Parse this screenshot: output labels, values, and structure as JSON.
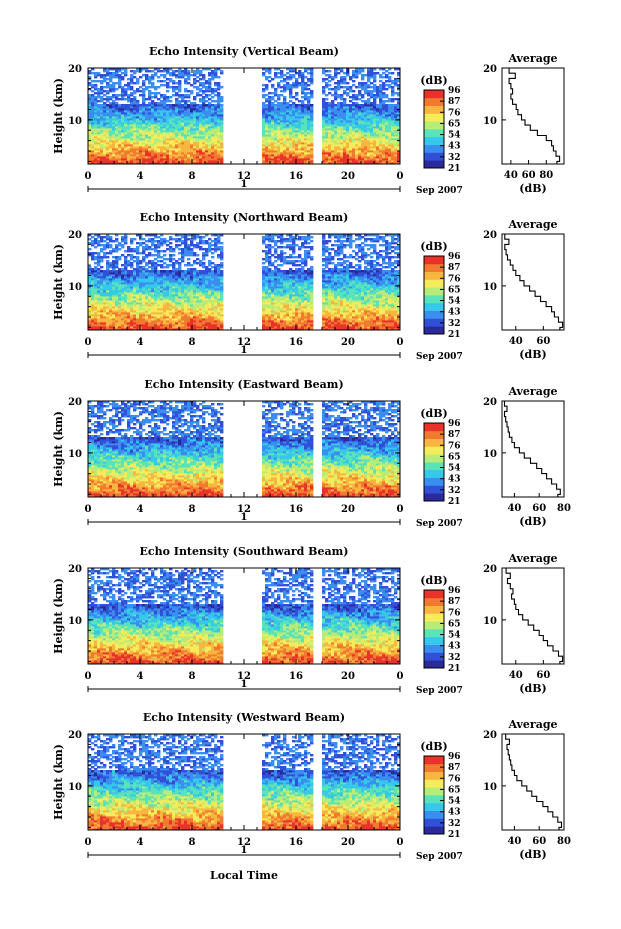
{
  "colors": {
    "colormap": [
      "#2a2a9a",
      "#3050d8",
      "#3a8ef0",
      "#36c8ea",
      "#5ae2b8",
      "#b8ec78",
      "#f4ec5a",
      "#f7b640",
      "#f27a30",
      "#e8322a"
    ],
    "line": "#000000",
    "background": "#ffffff"
  },
  "figure": {
    "xlabel": "Local Time",
    "date_label": "Sep 2007",
    "day_label": "1"
  },
  "chart_data": [
    {
      "type": "heatmap",
      "title": "Echo Intensity (Vertical Beam)",
      "ylabel": "Height (km)",
      "xlabel": "Local Time",
      "x_ticks": [
        "0",
        "4",
        "8",
        "12",
        "16",
        "20",
        "0"
      ],
      "xlim": [
        0,
        24
      ],
      "ylim": [
        1.5,
        20
      ],
      "y_ticks": [
        "20",
        "10"
      ],
      "colorbar_label": "(dB)",
      "colorbar_ticks": [
        "96",
        "87",
        "76",
        "65",
        "54",
        "43",
        "32",
        "21"
      ],
      "data_gaps_hours": [
        [
          10.5,
          13.3
        ],
        [
          17.4,
          18.1
        ]
      ],
      "profile": {
        "title": "Average",
        "xlabel": "(dB)",
        "xlim": [
          30,
          100
        ],
        "x_ticks": [
          "40",
          "60",
          "80"
        ],
        "ylim": [
          1.5,
          20
        ],
        "y_ticks": [
          "20",
          "10"
        ],
        "height_km": [
          1.5,
          2,
          3,
          4,
          5,
          6,
          7,
          8,
          9,
          10,
          11,
          12,
          13,
          14,
          15,
          16,
          17,
          18,
          19,
          20
        ],
        "intensity_db": [
          92,
          95,
          91,
          88,
          86,
          80,
          70,
          62,
          56,
          52,
          48,
          46,
          42,
          40,
          42,
          40,
          38,
          45,
          38,
          36
        ]
      }
    },
    {
      "type": "heatmap",
      "title": "Echo Intensity (Northward Beam)",
      "ylabel": "Height (km)",
      "xlabel": "Local Time",
      "x_ticks": [
        "0",
        "4",
        "8",
        "12",
        "16",
        "20",
        "0"
      ],
      "xlim": [
        0,
        24
      ],
      "ylim": [
        1.5,
        20
      ],
      "y_ticks": [
        "20",
        "10"
      ],
      "colorbar_label": "(dB)",
      "colorbar_ticks": [
        "96",
        "87",
        "76",
        "65",
        "54",
        "43",
        "32",
        "21"
      ],
      "data_gaps_hours": [
        [
          10.5,
          13.3
        ],
        [
          17.4,
          18.1
        ]
      ],
      "profile": {
        "title": "Average",
        "xlabel": "(dB)",
        "xlim": [
          30,
          75
        ],
        "x_ticks": [
          "40",
          "60"
        ],
        "ylim": [
          1.5,
          20
        ],
        "y_ticks": [
          "20",
          "10"
        ],
        "height_km": [
          1.5,
          2,
          3,
          4,
          5,
          6,
          7,
          8,
          9,
          10,
          11,
          12,
          13,
          14,
          15,
          16,
          17,
          18,
          19,
          20
        ],
        "intensity_db": [
          72,
          74,
          71,
          68,
          66,
          62,
          58,
          54,
          50,
          46,
          43,
          40,
          38,
          36,
          34,
          33,
          32,
          35,
          32,
          31
        ]
      }
    },
    {
      "type": "heatmap",
      "title": "Echo Intensity (Eastward Beam)",
      "ylabel": "Height (km)",
      "xlabel": "Local Time",
      "x_ticks": [
        "0",
        "4",
        "8",
        "12",
        "16",
        "20",
        "0"
      ],
      "xlim": [
        0,
        24
      ],
      "ylim": [
        1.5,
        20
      ],
      "y_ticks": [
        "20",
        "10"
      ],
      "colorbar_label": "(dB)",
      "colorbar_ticks": [
        "96",
        "87",
        "76",
        "65",
        "54",
        "43",
        "32",
        "21"
      ],
      "data_gaps_hours": [
        [
          10.5,
          13.3
        ],
        [
          17.4,
          18.1
        ]
      ],
      "profile": {
        "title": "Average",
        "xlabel": "(dB)",
        "xlim": [
          30,
          80
        ],
        "x_ticks": [
          "40",
          "60",
          "80"
        ],
        "ylim": [
          1.5,
          20
        ],
        "y_ticks": [
          "20",
          "10"
        ],
        "height_km": [
          1.5,
          2,
          3,
          4,
          5,
          6,
          7,
          8,
          9,
          10,
          11,
          12,
          13,
          14,
          15,
          16,
          17,
          18,
          19,
          20
        ],
        "intensity_db": [
          75,
          77,
          74,
          70,
          66,
          62,
          58,
          53,
          48,
          44,
          40,
          38,
          36,
          35,
          34,
          33,
          32,
          34,
          32,
          31
        ]
      }
    },
    {
      "type": "heatmap",
      "title": "Echo Intensity (Southward Beam)",
      "ylabel": "Height (km)",
      "xlabel": "Local Time",
      "x_ticks": [
        "0",
        "4",
        "8",
        "12",
        "16",
        "20",
        "0"
      ],
      "xlim": [
        0,
        24
      ],
      "ylim": [
        1.5,
        20
      ],
      "y_ticks": [
        "20",
        "10"
      ],
      "colorbar_label": "(dB)",
      "colorbar_ticks": [
        "96",
        "87",
        "76",
        "65",
        "54",
        "43",
        "32",
        "21"
      ],
      "data_gaps_hours": [
        [
          10.5,
          13.3
        ],
        [
          17.4,
          18.1
        ]
      ],
      "profile": {
        "title": "Average",
        "xlabel": "(dB)",
        "xlim": [
          30,
          75
        ],
        "x_ticks": [
          "40",
          "60"
        ],
        "ylim": [
          1.5,
          20
        ],
        "y_ticks": [
          "20",
          "10"
        ],
        "height_km": [
          1.5,
          2,
          3,
          4,
          5,
          6,
          7,
          8,
          9,
          10,
          11,
          12,
          13,
          14,
          15,
          16,
          17,
          18,
          19,
          20
        ],
        "intensity_db": [
          72,
          74,
          71,
          67,
          63,
          60,
          57,
          53,
          49,
          45,
          42,
          40,
          39,
          37,
          38,
          36,
          34,
          36,
          33,
          32
        ]
      }
    },
    {
      "type": "heatmap",
      "title": "Echo Intensity (Westward Beam)",
      "ylabel": "Height (km)",
      "xlabel": "Local Time",
      "x_ticks": [
        "0",
        "4",
        "8",
        "12",
        "16",
        "20",
        "0"
      ],
      "xlim": [
        0,
        24
      ],
      "ylim": [
        1.5,
        20
      ],
      "y_ticks": [
        "20",
        "10"
      ],
      "colorbar_label": "(dB)",
      "colorbar_ticks": [
        "96",
        "87",
        "76",
        "65",
        "54",
        "43",
        "32",
        "21"
      ],
      "data_gaps_hours": [
        [
          10.5,
          13.3
        ],
        [
          17.4,
          18.1
        ]
      ],
      "profile": {
        "title": "Average",
        "xlabel": "(dB)",
        "xlim": [
          30,
          80
        ],
        "x_ticks": [
          "40",
          "60",
          "80"
        ],
        "ylim": [
          1.5,
          20
        ],
        "y_ticks": [
          "20",
          "10"
        ],
        "height_km": [
          1.5,
          2,
          3,
          4,
          5,
          6,
          7,
          8,
          9,
          10,
          11,
          12,
          13,
          14,
          15,
          16,
          17,
          18,
          19,
          20
        ],
        "intensity_db": [
          76,
          78,
          75,
          71,
          67,
          63,
          58,
          54,
          50,
          46,
          42,
          40,
          38,
          37,
          36,
          35,
          34,
          36,
          33,
          32
        ]
      }
    }
  ]
}
